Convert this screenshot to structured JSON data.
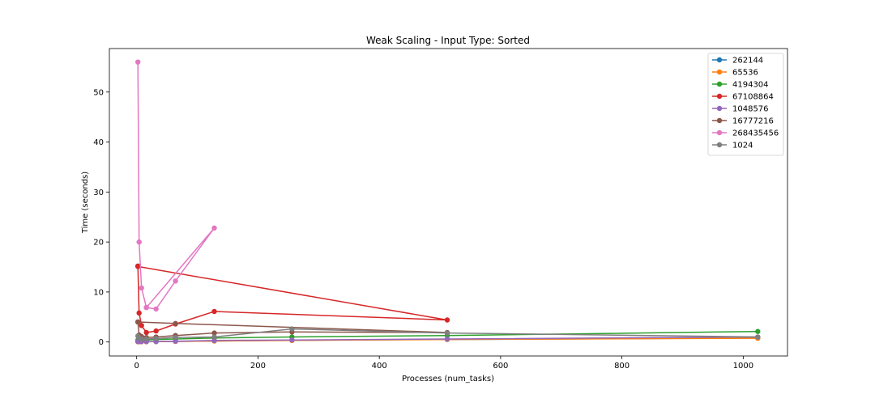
{
  "chart_data": {
    "type": "line",
    "title": "Weak Scaling - Input Type: Sorted",
    "xlabel": "Processes (num_tasks)",
    "ylabel": "Time (seconds)",
    "xlim": [
      -45,
      1073
    ],
    "ylim": [
      -2.8,
      58.7
    ],
    "xticks": [
      0,
      200,
      400,
      600,
      800,
      1000
    ],
    "yticks": [
      0,
      10,
      20,
      30,
      40,
      50
    ],
    "grid": false,
    "legend_position": "top-right",
    "series": [
      {
        "name": "262144",
        "color": "#1f77b4",
        "points": [
          [
            2,
            0.05
          ],
          [
            4,
            0.05
          ],
          [
            8,
            0.05
          ],
          [
            16,
            0.05
          ],
          [
            32,
            0.08
          ],
          [
            64,
            0.12
          ],
          [
            128,
            0.2
          ],
          [
            256,
            0.35
          ],
          [
            512,
            0.5
          ],
          [
            1024,
            0.8
          ]
        ]
      },
      {
        "name": "65536",
        "color": "#ff7f0e",
        "points": [
          [
            2,
            0.05
          ],
          [
            4,
            0.05
          ],
          [
            8,
            0.05
          ],
          [
            16,
            0.05
          ],
          [
            32,
            0.1
          ],
          [
            64,
            0.12
          ],
          [
            128,
            0.2
          ],
          [
            256,
            0.3
          ],
          [
            512,
            0.5
          ],
          [
            1024,
            0.75
          ]
        ]
      },
      {
        "name": "4194304",
        "color": "#2ca02c",
        "points": [
          [
            2,
            0.4
          ],
          [
            4,
            0.3
          ],
          [
            8,
            0.3
          ],
          [
            16,
            0.4
          ],
          [
            32,
            0.5
          ],
          [
            64,
            0.6
          ],
          [
            128,
            0.8
          ],
          [
            256,
            1.0
          ],
          [
            512,
            1.3
          ],
          [
            1024,
            2.1
          ]
        ]
      },
      {
        "name": "67108864",
        "color": "#d62728",
        "points": [
          [
            2,
            15.2
          ],
          [
            4,
            5.8
          ],
          [
            8,
            3.3
          ],
          [
            16,
            1.9
          ],
          [
            32,
            2.2
          ],
          [
            64,
            3.6
          ],
          [
            128,
            6.1
          ],
          [
            512,
            4.4
          ],
          [
            2,
            15.1
          ]
        ]
      },
      {
        "name": "1048576",
        "color": "#9467bd",
        "points": [
          [
            2,
            0.1
          ],
          [
            4,
            0.1
          ],
          [
            8,
            0.1
          ],
          [
            16,
            0.1
          ],
          [
            32,
            0.1
          ],
          [
            64,
            0.15
          ],
          [
            128,
            0.3
          ],
          [
            256,
            0.4
          ],
          [
            512,
            0.6
          ],
          [
            1024,
            1.0
          ]
        ]
      },
      {
        "name": "16777216",
        "color": "#8c564b",
        "points": [
          [
            2,
            4.0
          ],
          [
            4,
            1.4
          ],
          [
            8,
            1.1
          ],
          [
            16,
            0.9
          ],
          [
            32,
            1.0
          ],
          [
            64,
            1.3
          ],
          [
            128,
            1.8
          ],
          [
            256,
            2.0
          ],
          [
            512,
            1.9
          ],
          [
            64,
            3.7
          ],
          [
            2,
            4.0
          ]
        ]
      },
      {
        "name": "268435456",
        "color": "#e377c2",
        "points": [
          [
            2,
            56.0
          ],
          [
            4,
            20.0
          ],
          [
            8,
            10.8
          ],
          [
            16,
            6.9
          ],
          [
            32,
            6.6
          ],
          [
            64,
            12.2
          ],
          [
            128,
            22.8
          ],
          [
            16,
            6.9
          ]
        ]
      },
      {
        "name": "1024",
        "color": "#7f7f7f",
        "points": [
          [
            2,
            1.2
          ],
          [
            4,
            0.8
          ],
          [
            8,
            0.6
          ],
          [
            16,
            0.6
          ],
          [
            32,
            0.7
          ],
          [
            64,
            0.9
          ],
          [
            128,
            1.0
          ],
          [
            256,
            2.6
          ],
          [
            512,
            1.8
          ],
          [
            1024,
            1.0
          ]
        ]
      }
    ]
  }
}
